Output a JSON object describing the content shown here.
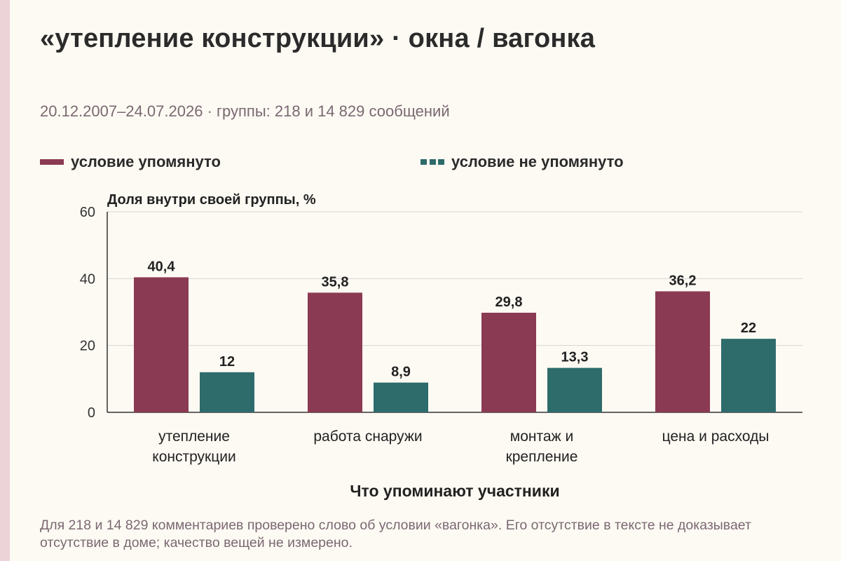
{
  "colors": {
    "mentioned": "#8b3a53",
    "not_mentioned": "#2e6b6b",
    "grid": "#d6d6d6",
    "axis": "#333333"
  },
  "legend": {
    "mentioned": "условие упомянуто",
    "not_mentioned": "условие не упомянуто"
  },
  "chart_data": {
    "type": "bar",
    "title": "«утепление конструкции» · окна / вагонка",
    "subtitle": "20.12.2007–24.07.2026 · группы: 218 и 14 829 сообщений",
    "ylabel": "Доля внутри своей группы, %",
    "xlabel": "Что упоминают участники",
    "ylim": [
      0,
      60
    ],
    "yticks": [
      0,
      20,
      40,
      60
    ],
    "ytick_labels": [
      "0",
      "20",
      "40",
      "60"
    ],
    "grid": true,
    "legend_position": "top-left",
    "categories": [
      [
        "утепление",
        "конструкции"
      ],
      [
        "работа снаружи"
      ],
      [
        "монтаж и",
        "крепление"
      ],
      [
        "цена и расходы"
      ]
    ],
    "series": [
      {
        "name": "условие упомянуто",
        "values": [
          40.4,
          35.8,
          29.8,
          36.2
        ],
        "labels": [
          "40,4",
          "35,8",
          "29,8",
          "36,2"
        ]
      },
      {
        "name": "условие не упомянуто",
        "values": [
          12,
          8.9,
          13.3,
          22
        ],
        "labels": [
          "12",
          "8,9",
          "13,3",
          "22"
        ]
      }
    ]
  },
  "footnote": "Для 218 и 14 829 комментариев проверено слово об условии «вагонка». Его отсутствие в тексте не доказывает отсутствие в доме; качество вещей не измерено."
}
